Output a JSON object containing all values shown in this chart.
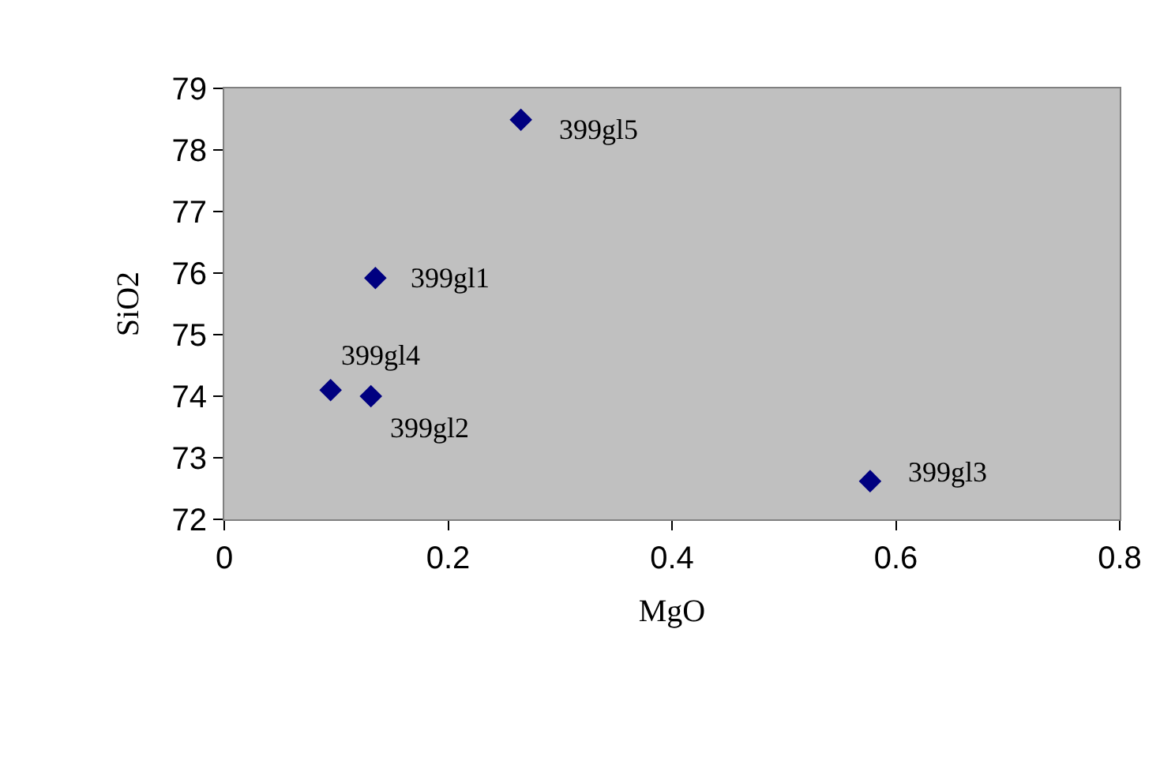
{
  "chart_data": {
    "type": "scatter",
    "xlabel": "MgO",
    "ylabel": "SiO2",
    "x": [
      0.265,
      0.135,
      0.095,
      0.131,
      0.577
    ],
    "series": [
      {
        "color": "#000080",
        "values": [
          78.49,
          75.92,
          74.1,
          74.0,
          72.62
        ]
      }
    ],
    "marker": "diamond",
    "xlim": [
      0,
      0.8
    ],
    "xticks": [
      0,
      0.2,
      0.4,
      0.6,
      0.8
    ],
    "ylim": [
      72,
      79
    ],
    "yticks": [
      72,
      73,
      74,
      75,
      76,
      77,
      78,
      79
    ],
    "grid": false,
    "annotations": [
      {
        "text": "399gl5",
        "x": 0.265,
        "y": 78.49
      },
      {
        "text": "399gl1",
        "x": 0.135,
        "y": 75.92
      },
      {
        "text": "399gl4",
        "x": 0.095,
        "y": 74.1
      },
      {
        "text": "399gl2",
        "x": 0.131,
        "y": 74.0
      },
      {
        "text": "399gl3",
        "x": 0.577,
        "y": 72.62
      }
    ]
  }
}
